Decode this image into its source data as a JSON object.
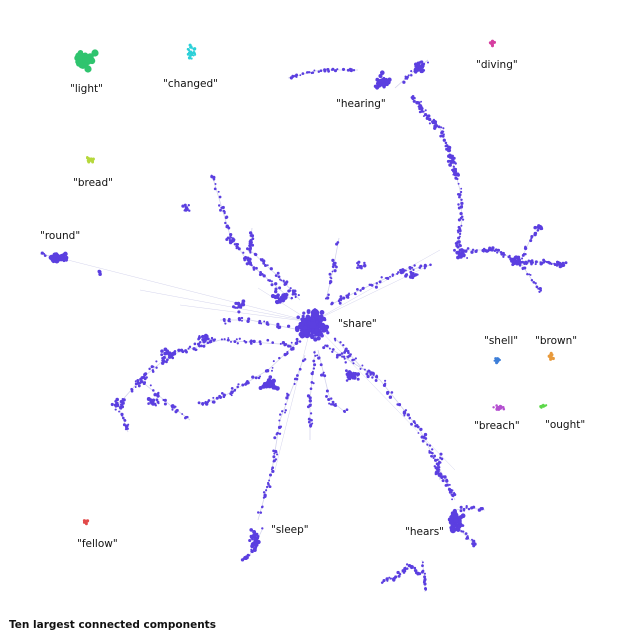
{
  "caption": "Ten largest connected components",
  "edge_color": "#d4d4ec",
  "components": [
    {
      "id": "share",
      "label": "\"share\"",
      "color": "#5b3fe0"
    },
    {
      "id": "light",
      "label": "\"light\"",
      "color": "#2fc46e"
    },
    {
      "id": "changed",
      "label": "\"changed\"",
      "color": "#2bd0d8"
    },
    {
      "id": "diving",
      "label": "\"diving\"",
      "color": "#d63fa0"
    },
    {
      "id": "bread",
      "label": "\"bread\"",
      "color": "#b6d83c"
    },
    {
      "id": "shell",
      "label": "\"shell\"",
      "color": "#3d7ed8"
    },
    {
      "id": "brown",
      "label": "\"brown\"",
      "color": "#e89a3c"
    },
    {
      "id": "breach",
      "label": "\"breach\"",
      "color": "#b44fd0"
    },
    {
      "id": "ought",
      "label": "\"ought\"",
      "color": "#5dd84a"
    },
    {
      "id": "fellow",
      "label": "\"fellow\"",
      "color": "#e24a4a"
    }
  ],
  "hub_labels": [
    "\"hearing\"",
    "\"round\"",
    "\"sleep\"",
    "\"hears\""
  ]
}
